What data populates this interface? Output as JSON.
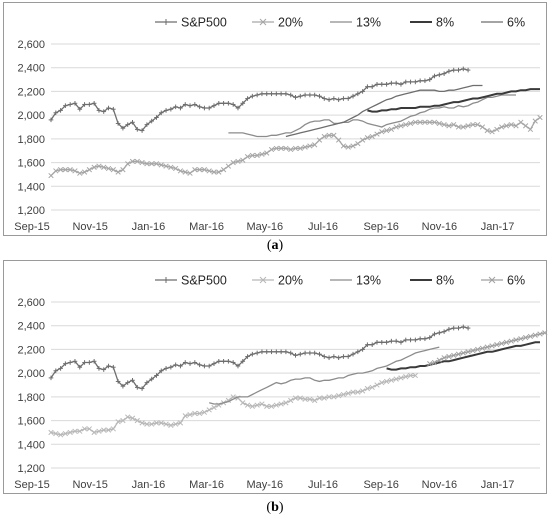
{
  "captions": [
    "a",
    "b"
  ],
  "chart_data": [
    {
      "type": "line",
      "panel": "a",
      "ylim": [
        1200,
        2600
      ],
      "yticks": [
        1200,
        1400,
        1600,
        1800,
        2000,
        2200,
        2400,
        2600
      ],
      "ytick_labels": [
        "1,200",
        "1,400",
        "1,600",
        "1,800",
        "2,000",
        "2,200",
        "2,400",
        "2,600"
      ],
      "xtick_labels": [
        "Sep-15",
        "Nov-15",
        "Jan-16",
        "Mar-16",
        "May-16",
        "Jul-16",
        "Sep-16",
        "Nov-16",
        "Jan-17"
      ],
      "grid": "horizontal",
      "legend": "top",
      "series": [
        {
          "name": "S&P500",
          "color": "#6e6e6e",
          "marker": "plus",
          "values": [
            1960,
            2020,
            2040,
            2080,
            2090,
            2100,
            2050,
            2090,
            2090,
            2100,
            2040,
            2030,
            2060,
            2050,
            1930,
            1890,
            1920,
            1940,
            1880,
            1870,
            1920,
            1950,
            1980,
            2020,
            2040,
            2050,
            2070,
            2060,
            2090,
            2080,
            2090,
            2070,
            2060,
            2060,
            2080,
            2100,
            2100,
            2100,
            2090,
            2060,
            2100,
            2140,
            2160,
            2170,
            2180,
            2180,
            2180,
            2180,
            2180,
            2180,
            2170,
            2150,
            2160,
            2170,
            2170,
            2170,
            2160,
            2140,
            2130,
            2140,
            2130,
            2140,
            2140,
            2160,
            2180,
            2200,
            2240,
            2240,
            2260,
            2260,
            2260,
            2270,
            2270,
            2260,
            2280,
            2280,
            2280,
            2290,
            2290,
            2300,
            2330,
            2340,
            2350,
            2370,
            2380,
            2380,
            2390,
            2380
          ]
        },
        {
          "name": "20%",
          "color": "#a6a6a6",
          "marker": "x",
          "values": [
            1490,
            1530,
            1540,
            1540,
            1540,
            1530,
            1510,
            1520,
            1540,
            1560,
            1570,
            1560,
            1550,
            1540,
            1520,
            1540,
            1590,
            1610,
            1610,
            1600,
            1590,
            1590,
            1590,
            1580,
            1570,
            1560,
            1550,
            1530,
            1520,
            1510,
            1540,
            1540,
            1540,
            1530,
            1520,
            1520,
            1540,
            1570,
            1600,
            1610,
            1620,
            1650,
            1660,
            1660,
            1670,
            1680,
            1710,
            1720,
            1720,
            1720,
            1710,
            1720,
            1720,
            1730,
            1740,
            1750,
            1790,
            1820,
            1830,
            1830,
            1790,
            1740,
            1730,
            1740,
            1760,
            1790,
            1810,
            1820,
            1840,
            1860,
            1870,
            1880,
            1900,
            1910,
            1920,
            1930,
            1940,
            1940,
            1940,
            1940,
            1940,
            1930,
            1920,
            1910,
            1920,
            1900,
            1900,
            1910,
            1920,
            1920,
            1900,
            1870,
            1860,
            1880,
            1900,
            1910,
            1920,
            1910,
            1940,
            1910,
            1880,
            1950,
            1980
          ]
        },
        {
          "name": "13%",
          "color": "#8c8c8c",
          "marker": "none",
          "values": [
            1850,
            1850,
            1850,
            1850,
            1840,
            1830,
            1820,
            1820,
            1820,
            1830,
            1830,
            1840,
            1850,
            1850,
            1870,
            1890,
            1920,
            1940,
            1950,
            1950,
            1960,
            1960,
            1930,
            1930,
            1940,
            1940,
            1960,
            1960,
            1950,
            1930,
            1920,
            1910,
            1900,
            1920,
            1930,
            1940,
            1950,
            1970,
            1990,
            2000,
            2020,
            2030,
            2050,
            2060,
            2060,
            2070,
            2060,
            2060,
            2080,
            2070,
            2080,
            2100,
            2110,
            2130,
            2150,
            2150,
            2160,
            2170,
            2170,
            2170,
            2170
          ]
        },
        {
          "name": "8%",
          "color": "#3a3a3a",
          "marker": "none",
          "values": [
            2040,
            2030,
            2030,
            2040,
            2040,
            2050,
            2050,
            2060,
            2060,
            2060,
            2060,
            2070,
            2070,
            2070,
            2080,
            2080,
            2090,
            2100,
            2110,
            2110,
            2120,
            2130,
            2140,
            2140,
            2150,
            2160,
            2170,
            2180,
            2180,
            2190,
            2200,
            2200,
            2210,
            2210,
            2220,
            2220,
            2220
          ]
        },
        {
          "name": "6%",
          "color": "#6e6e6e",
          "marker": "none",
          "values": [
            1820,
            1830,
            1840,
            1850,
            1860,
            1870,
            1880,
            1890,
            1900,
            1910,
            1920,
            1930,
            1940,
            1960,
            1980,
            2000,
            2030,
            2050,
            2070,
            2090,
            2110,
            2130,
            2140,
            2160,
            2170,
            2180,
            2190,
            2200,
            2210,
            2210,
            2210,
            2210,
            2200,
            2200,
            2210,
            2210,
            2220,
            2230,
            2240,
            2250,
            2250,
            2250
          ]
        }
      ]
    },
    {
      "type": "line",
      "panel": "b",
      "ylim": [
        1200,
        2600
      ],
      "yticks": [
        1200,
        1400,
        1600,
        1800,
        2000,
        2200,
        2400,
        2600
      ],
      "ytick_labels": [
        "1,200",
        "1,400",
        "1,600",
        "1,800",
        "2,000",
        "2,200",
        "2,400",
        "2,600"
      ],
      "xtick_labels": [
        "Sep-15",
        "Nov-15",
        "Jan-16",
        "Mar-16",
        "May-16",
        "Jul-16",
        "Sep-16",
        "Nov-16",
        "Jan-17"
      ],
      "grid": "horizontal",
      "legend": "top",
      "series": [
        {
          "name": "S&P500",
          "color": "#6e6e6e",
          "marker": "plus",
          "values": [
            1960,
            2020,
            2040,
            2080,
            2090,
            2100,
            2050,
            2090,
            2090,
            2100,
            2040,
            2030,
            2060,
            2050,
            1930,
            1890,
            1920,
            1940,
            1880,
            1870,
            1920,
            1950,
            1980,
            2020,
            2040,
            2050,
            2070,
            2060,
            2090,
            2080,
            2090,
            2070,
            2060,
            2060,
            2080,
            2100,
            2100,
            2100,
            2090,
            2060,
            2100,
            2140,
            2160,
            2170,
            2180,
            2180,
            2180,
            2180,
            2180,
            2180,
            2170,
            2150,
            2160,
            2170,
            2170,
            2170,
            2160,
            2140,
            2130,
            2140,
            2130,
            2140,
            2140,
            2160,
            2180,
            2200,
            2240,
            2240,
            2260,
            2260,
            2260,
            2270,
            2270,
            2260,
            2280,
            2280,
            2280,
            2290,
            2290,
            2300,
            2330,
            2340,
            2350,
            2370,
            2380,
            2380,
            2390,
            2380
          ]
        },
        {
          "name": "20%",
          "color": "#b8b8b8",
          "marker": "x",
          "values": [
            1500,
            1490,
            1480,
            1490,
            1500,
            1510,
            1510,
            1530,
            1530,
            1500,
            1510,
            1520,
            1520,
            1530,
            1590,
            1600,
            1630,
            1620,
            1600,
            1580,
            1570,
            1570,
            1580,
            1580,
            1570,
            1560,
            1570,
            1580,
            1640,
            1650,
            1660,
            1660,
            1670,
            1690,
            1710,
            1730,
            1750,
            1770,
            1800,
            1790,
            1750,
            1730,
            1720,
            1730,
            1740,
            1720,
            1720,
            1730,
            1740,
            1750,
            1770,
            1790,
            1790,
            1780,
            1780,
            1770,
            1790,
            1790,
            1800,
            1800,
            1810,
            1820,
            1830,
            1840,
            1840,
            1850,
            1870,
            1880,
            1900,
            1920,
            1930,
            1940,
            1950,
            1960,
            1970,
            1980,
            1980
          ]
        },
        {
          "name": "13%",
          "color": "#8c8c8c",
          "marker": "none",
          "values": [
            1750,
            1740,
            1740,
            1750,
            1760,
            1780,
            1800,
            1800,
            1800,
            1820,
            1840,
            1860,
            1880,
            1900,
            1920,
            1910,
            1920,
            1940,
            1950,
            1950,
            1960,
            1960,
            1940,
            1930,
            1940,
            1940,
            1950,
            1960,
            1960,
            1980,
            1990,
            2000,
            2000,
            2010,
            2020,
            2040,
            2050,
            2060,
            2080,
            2100,
            2110,
            2130,
            2150,
            2170,
            2180,
            2190,
            2200,
            2210,
            2220
          ]
        },
        {
          "name": "8%",
          "color": "#3a3a3a",
          "marker": "none",
          "values": [
            2040,
            2030,
            2030,
            2040,
            2040,
            2050,
            2050,
            2060,
            2060,
            2070,
            2080,
            2090,
            2100,
            2100,
            2110,
            2120,
            2130,
            2140,
            2150,
            2160,
            2170,
            2180,
            2180,
            2190,
            2200,
            2210,
            2220,
            2230,
            2230,
            2240,
            2250,
            2260,
            2260
          ]
        },
        {
          "name": "6%",
          "color": "#a0a0a0",
          "marker": "x",
          "values": [
            2080,
            2090,
            2110,
            2130,
            2140,
            2150,
            2160,
            2170,
            2180,
            2190,
            2200,
            2210,
            2220,
            2230,
            2240,
            2250,
            2260,
            2270,
            2280,
            2290,
            2300,
            2310,
            2320,
            2330,
            2340
          ]
        }
      ]
    }
  ]
}
